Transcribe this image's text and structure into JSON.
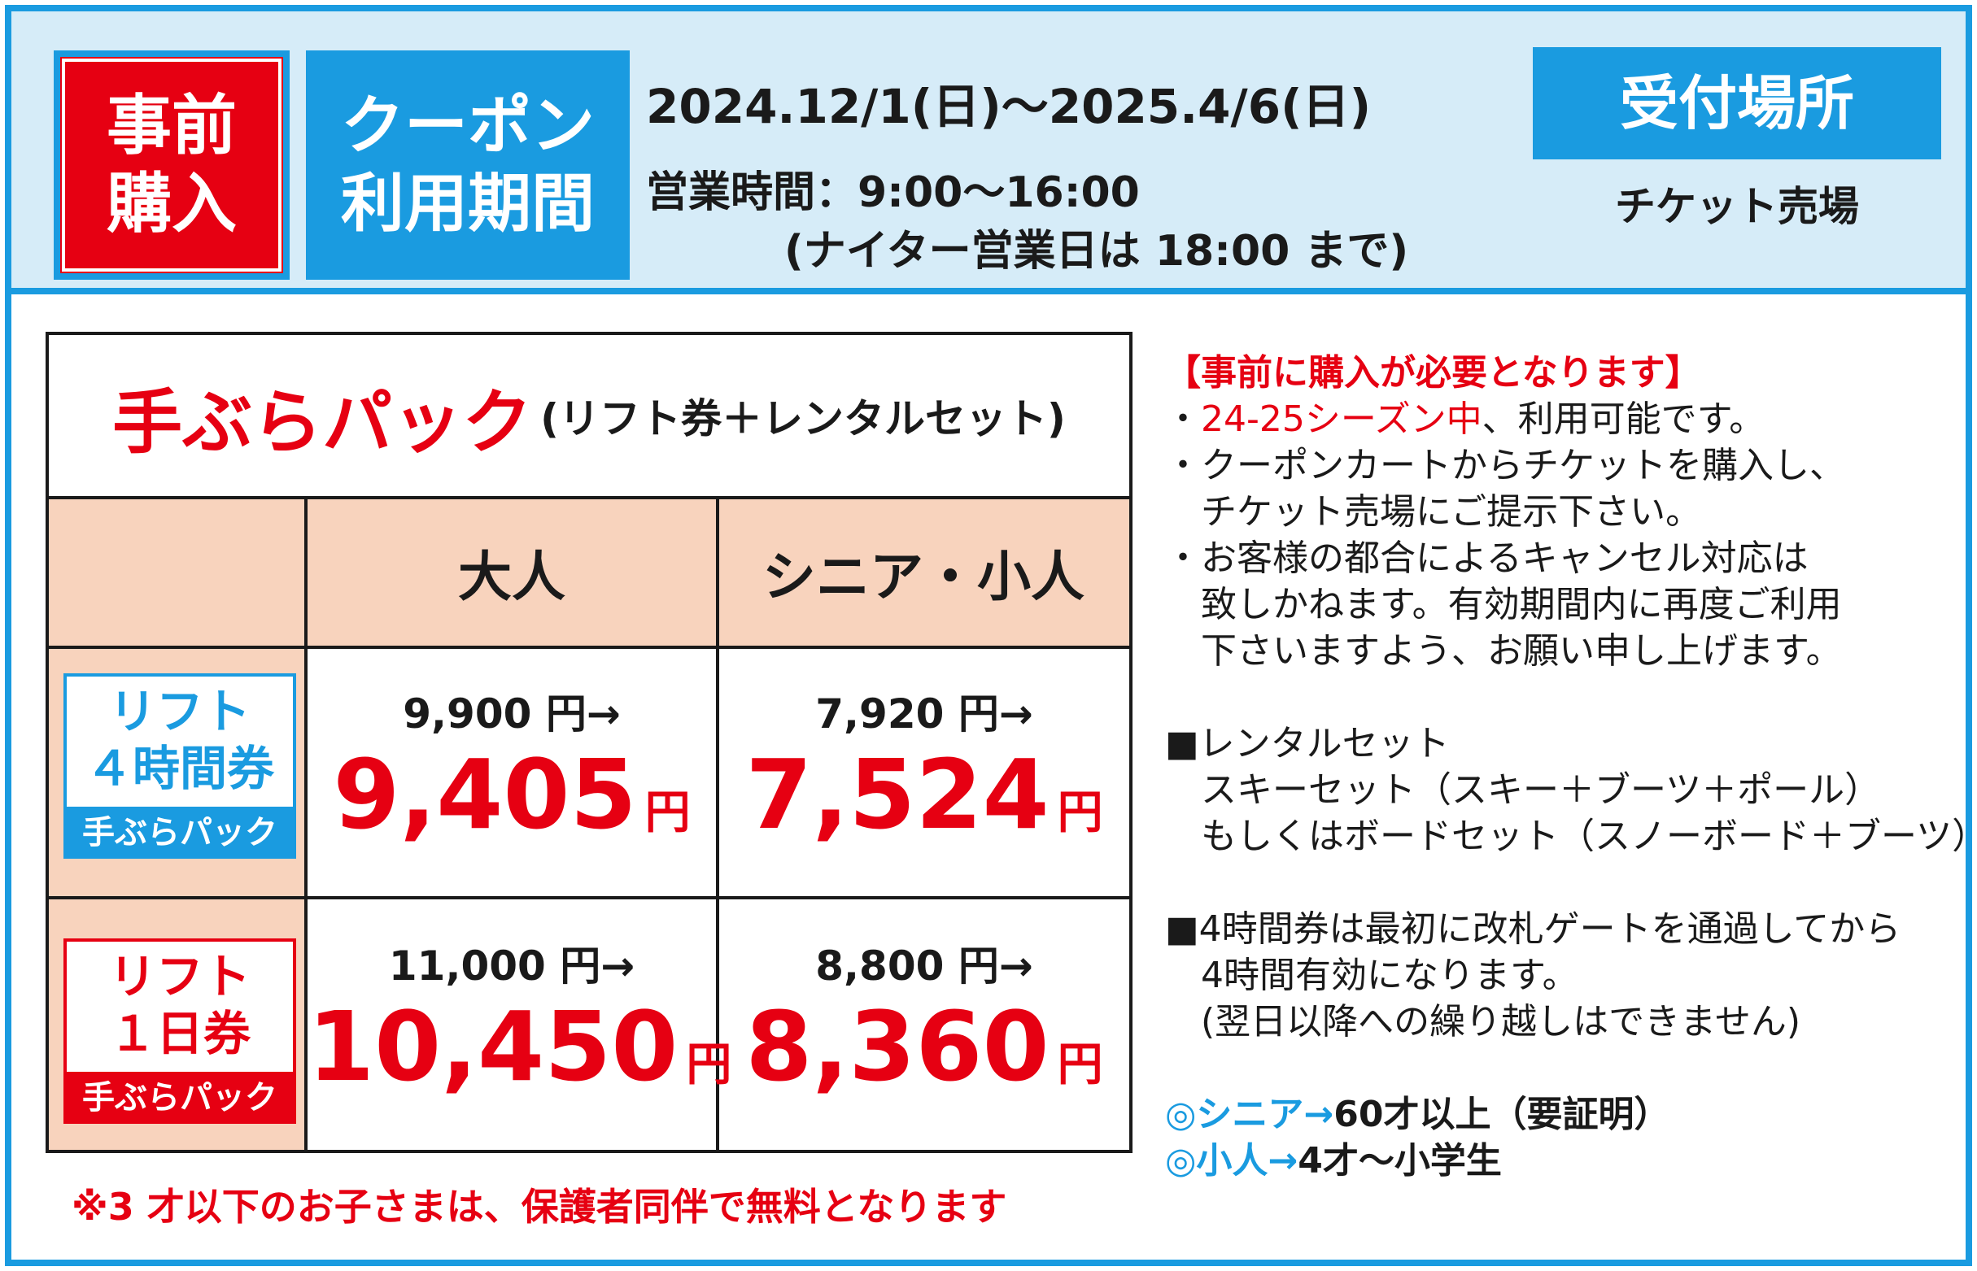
{
  "header": {
    "badge_red": [
      "事前",
      "購入"
    ],
    "badge_blue": [
      "クーポン",
      "利用期間"
    ],
    "period": "2024.12/1(日)～2025.4/6(日)",
    "hours": "営業時間：9:00～16:00",
    "hours_note": "(ナイター営業日は 18:00 まで)",
    "reception_label": "受付場所",
    "reception_place": "チケット売場"
  },
  "table": {
    "title": "手ぶらパック",
    "subtitle": "(リフト券＋レンタルセット)",
    "columns": [
      "大人",
      "シニア・小人"
    ],
    "rows": [
      {
        "label_lines": [
          "リフト",
          "４時間券"
        ],
        "label_foot": "手ぶらパック",
        "label_color": "#1a9be0",
        "cells": [
          {
            "old": "9,900 円→",
            "new": "9,405",
            "unit": "円"
          },
          {
            "old": "7,920 円→",
            "new": "7,524",
            "unit": "円"
          }
        ]
      },
      {
        "label_lines": [
          "リフト",
          "１日券"
        ],
        "label_foot": "手ぶらパック",
        "label_color": "#e60012",
        "cells": [
          {
            "old": "11,000 円→",
            "new": "10,450",
            "unit": "円"
          },
          {
            "old": "8,800 円→",
            "new": "8,360",
            "unit": "円"
          }
        ]
      }
    ],
    "footnote": "※3 才以下のお子さまは、保護者同伴で無料となります"
  },
  "notes": {
    "heading": "【事前に購入が必要となります】",
    "bullet1_prefix": "・",
    "bullet1_red": "24-25シーズン中",
    "bullet1_rest": "、利用可能です。",
    "bullet2_l1": "・クーポンカートからチケットを購入し、",
    "bullet2_l2": "　チケット売場にご提示下さい。",
    "bullet3_l1": "・お客様の都合によるキャンセル対応は",
    "bullet3_l2": "　致しかねます。有効期間内に再度ご利用",
    "bullet3_l3": "　下さいますよう、お願い申し上げます。",
    "rental_l1": "■レンタルセット",
    "rental_l2": "　スキーセット（スキー＋ブーツ＋ポール）",
    "rental_l3": "　もしくはボードセット（スノーボード＋ブーツ）",
    "fourhour_l1": "■4時間券は最初に改札ゲートを通過してから",
    "fourhour_l2": "　4時間有効になります。",
    "fourhour_l3": "　(翌日以降への繰り越しはできません)",
    "senior_blue": "◎シニア→",
    "senior_rest": "60才以上（要証明）",
    "child_blue": "◎小人→",
    "child_rest": "4才～小学生"
  },
  "colors": {
    "accent_blue": "#1a9be0",
    "accent_red": "#e60012",
    "peach": "#f8d3bd",
    "header_bg": "#d6ecf8"
  }
}
